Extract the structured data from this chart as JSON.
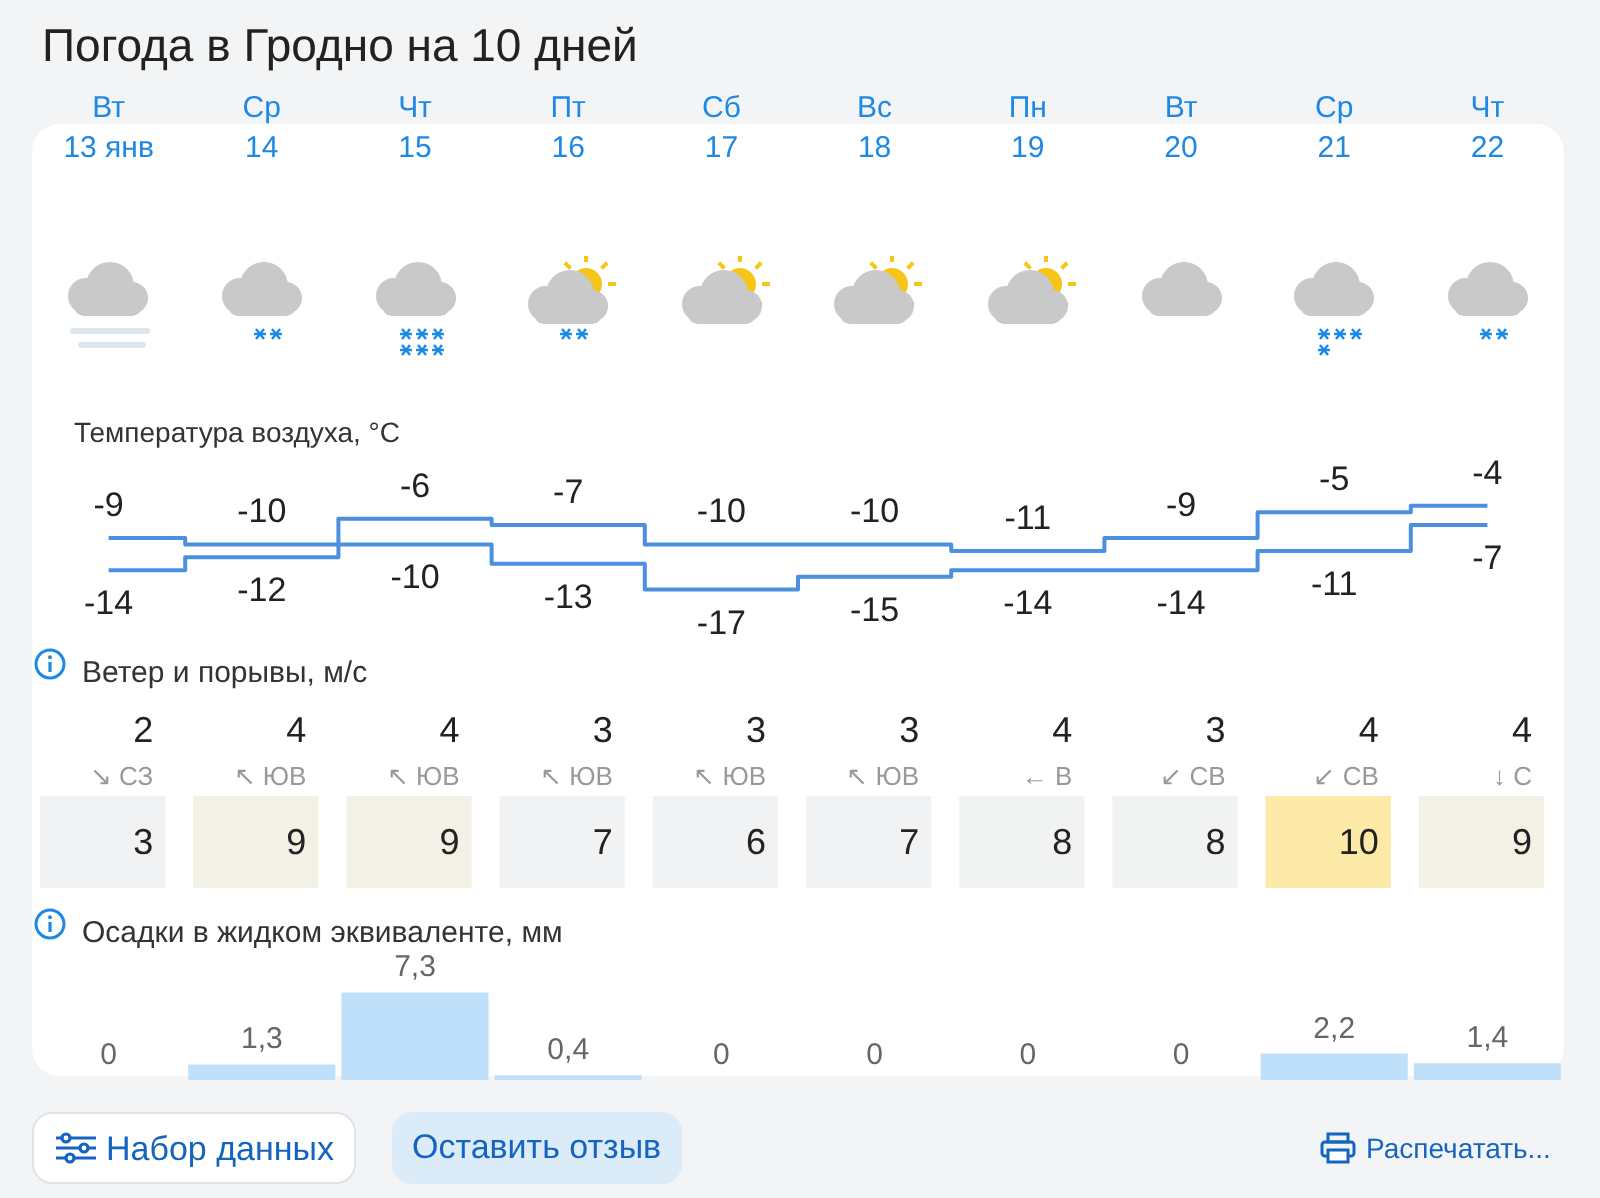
{
  "chart_data": [
    {
      "type": "step",
      "title": "Погода в Гродно на 10 дней",
      "subtitle": "Температура воздуха, °C",
      "categories": [
        "Вт\n13 янв",
        "Ср\n14",
        "Чт\n15",
        "Пт\n16",
        "Сб\n17",
        "Вс\n18",
        "Пн\n19",
        "Вт\n20",
        "Ср\n21",
        "Чт\n22"
      ],
      "series": [
        {
          "color": "#4a8fe0",
          "values": [
            -9,
            -10,
            -6,
            -7,
            -10,
            -10,
            -11,
            -9,
            -5,
            -4
          ]
        },
        {
          "color": "#4a8fe0",
          "values": [
            -14,
            -12,
            -10,
            -13,
            -17,
            -15,
            -14,
            -14,
            -11,
            -7
          ]
        }
      ],
      "tick_labels": "x",
      "data_labels": true,
      "marker": "none"
    },
    {
      "type": "heatmap",
      "title": "Ветер и порывы, м/с",
      "categories": [
        null,
        null,
        null,
        null,
        null,
        null,
        null,
        null,
        null,
        null
      ],
      "y_categories": [
        null,
        null
      ],
      "cells": [
        [
          2,
          4,
          4,
          3,
          3,
          3,
          4,
          3,
          4,
          4
        ],
        [
          3,
          9,
          9,
          7,
          6,
          7,
          8,
          8,
          10,
          9
        ]
      ],
      "cell_labels": [
        [
          "2\n↘ СЗ",
          "4\n↖ ЮВ",
          "4\n↖ ЮВ",
          "3\n↖ ЮВ",
          "3\n↖ ЮВ",
          "3\n↖ ЮВ",
          "4\n← В",
          "3\n↙ СВ",
          "4\n↙ СВ",
          "4\n↓ С"
        ],
        [
          "3",
          "9",
          "9",
          "7",
          "6",
          "7",
          "8",
          "8",
          "10",
          "9"
        ]
      ],
      "tick_labels": false
    },
    {
      "type": "bar",
      "title": "Осадки в жидком эквиваленте, мм",
      "categories": [
        null,
        null,
        null,
        null,
        null,
        null,
        null,
        null,
        null,
        null
      ],
      "values": [
        0,
        1.3,
        7.3,
        0.4,
        0,
        0,
        0,
        0,
        2.2,
        1.4
      ],
      "value_labels": [
        "0",
        "1,3",
        "7,3",
        "0,4",
        "0",
        "0",
        "0",
        "0",
        "2,2",
        "1,4"
      ],
      "color": "#bfe0fb",
      "tick_labels": false,
      "annotations": [
        "Набор данных",
        "Оставить отзыв",
        "Распечатать..."
      ]
    }
  ]
}
